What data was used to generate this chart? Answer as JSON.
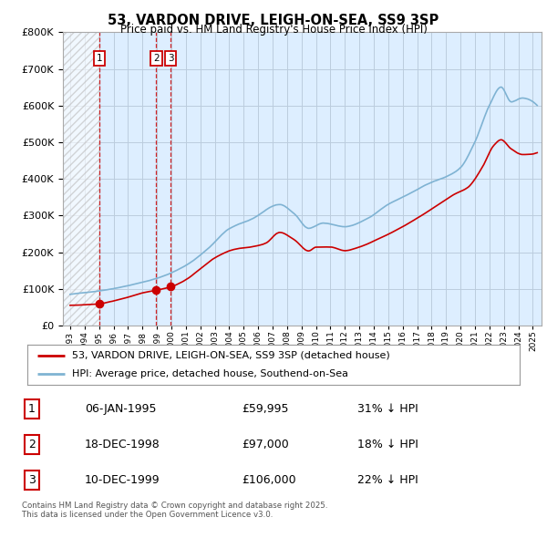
{
  "title": "53, VARDON DRIVE, LEIGH-ON-SEA, SS9 3SP",
  "subtitle": "Price paid vs. HM Land Registry's House Price Index (HPI)",
  "legend_line1": "53, VARDON DRIVE, LEIGH-ON-SEA, SS9 3SP (detached house)",
  "legend_line2": "HPI: Average price, detached house, Southend-on-Sea",
  "footnote": "Contains HM Land Registry data © Crown copyright and database right 2025.\nThis data is licensed under the Open Government Licence v3.0.",
  "transactions": [
    {
      "num": 1,
      "date": "06-JAN-1995",
      "price": 59995,
      "year": 1995.02,
      "hpi_diff": "31% ↓ HPI"
    },
    {
      "num": 2,
      "date": "18-DEC-1998",
      "price": 97000,
      "year": 1998.96,
      "hpi_diff": "18% ↓ HPI"
    },
    {
      "num": 3,
      "date": "10-DEC-1999",
      "price": 106000,
      "year": 1999.94,
      "hpi_diff": "22% ↓ HPI"
    }
  ],
  "hpi_color": "#7fb3d3",
  "price_color": "#cc0000",
  "hatch_color": "#bbbbbb",
  "background_color": "#ddeeff",
  "grid_color": "#bbccdd",
  "ylim": [
    0,
    800000
  ],
  "yticks": [
    0,
    100000,
    200000,
    300000,
    400000,
    500000,
    600000,
    700000,
    800000
  ],
  "xlim_start": 1992.5,
  "xlim_end": 2025.6
}
